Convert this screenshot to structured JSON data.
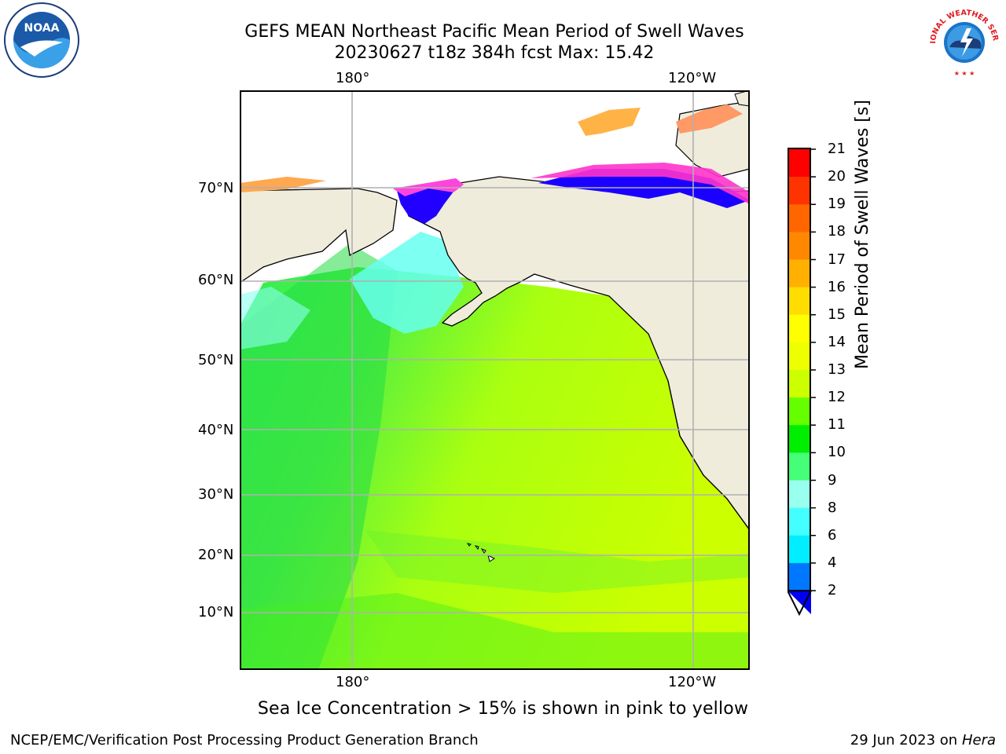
{
  "title": {
    "line1": "GEFS MEAN Northeast Pacific Mean Period of Swell Waves",
    "line2": "20230627 t18z 384h fcst   Max: 15.42"
  },
  "logos": {
    "left": {
      "name": "noaa-logo",
      "text": "NOAA"
    },
    "right": {
      "name": "nws-logo",
      "text": "NATIONAL WEATHER SERVICE"
    }
  },
  "map": {
    "lon_top_labels": [
      "180°",
      "120°W"
    ],
    "lon_bottom_labels": [
      "180°",
      "120°W"
    ],
    "lat_labels": [
      "70°N",
      "60°N",
      "50°N",
      "40°N",
      "30°N",
      "20°N",
      "10°N"
    ],
    "land_color": "#efecdc",
    "grid_color": "#b0b0b0"
  },
  "colorbar": {
    "label": "Mean Period of Swell Waves [s]",
    "ticks": [
      "21",
      "20",
      "19",
      "18",
      "17",
      "16",
      "15",
      "14",
      "13",
      "12",
      "11",
      "10",
      "9",
      "8",
      "6",
      "4",
      "2"
    ],
    "colors": [
      "#ff0000",
      "#ff3300",
      "#ff6600",
      "#ff8800",
      "#ffb000",
      "#ffdd00",
      "#ffff00",
      "#eeff00",
      "#ccff00",
      "#66ff00",
      "#00ee00",
      "#44ff77",
      "#99ffee",
      "#44ffff",
      "#00eeff",
      "#0077ff",
      "#0000ff"
    ],
    "extend_color": "#0000ee"
  },
  "note": "Sea Ice Concentration > 15% is shown in pink to yellow",
  "footer": {
    "left": "NCEP/EMC/Verification Post Processing Product Generation Branch",
    "right_prefix": "29 Jun 2023 on",
    "right_host": "Hera"
  }
}
